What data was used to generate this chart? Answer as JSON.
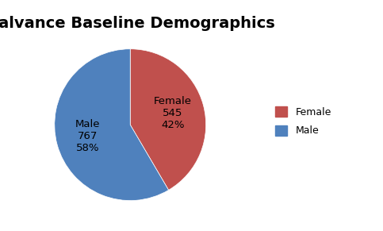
{
  "title": "Dalvance Baseline Demographics",
  "slices": [
    "Female",
    "Male"
  ],
  "values": [
    545,
    767
  ],
  "percentages": [
    42,
    58
  ],
  "counts": [
    545,
    767
  ],
  "colors": [
    "#c0504d",
    "#4f81bd"
  ],
  "startangle": 90,
  "background_color": "#ffffff",
  "title_fontsize": 14,
  "label_fontsize": 9.5
}
